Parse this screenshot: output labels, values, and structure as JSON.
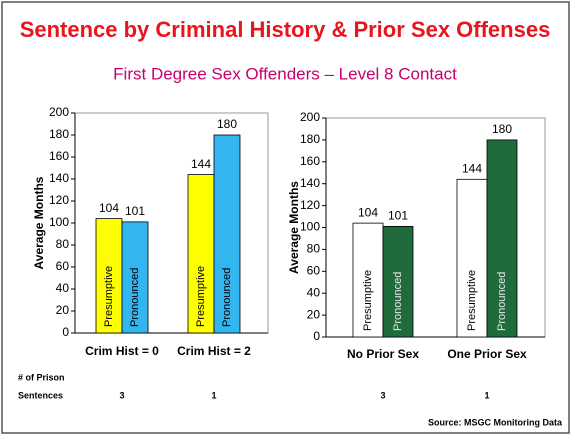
{
  "title": "Sentence by Criminal History & Prior Sex Offenses",
  "subtitle": "First Degree Sex Offenders – Level 8 Contact",
  "row_label": [
    "# of Prison",
    "Sentences"
  ],
  "source": "Source:  MSGC Monitoring Data",
  "chart_data": [
    {
      "type": "bar",
      "ylabel": "Average Months",
      "categories": [
        "Crim Hist = 0",
        "Crim Hist = 2"
      ],
      "series": [
        {
          "name": "Presumptive",
          "color": "#ffff00",
          "values": [
            104,
            144
          ]
        },
        {
          "name": "Pronounced",
          "color": "#33b5ef",
          "values": [
            101,
            180
          ]
        }
      ],
      "prison_sentences": [
        3,
        1
      ],
      "ylim": [
        0,
        200
      ],
      "yticks": [
        0,
        20,
        40,
        60,
        80,
        100,
        120,
        140,
        160,
        180,
        200
      ]
    },
    {
      "type": "bar",
      "ylabel": "Average Months",
      "categories": [
        "No Prior Sex",
        "One Prior Sex"
      ],
      "series": [
        {
          "name": "Presumptive",
          "color": "#ffffff",
          "values": [
            104,
            144
          ]
        },
        {
          "name": "Pronounced",
          "color": "#1f6b3c",
          "values": [
            101,
            180
          ]
        }
      ],
      "prison_sentences": [
        3,
        1
      ],
      "ylim": [
        0,
        200
      ],
      "yticks": [
        0,
        20,
        40,
        60,
        80,
        100,
        120,
        140,
        160,
        180,
        200
      ]
    }
  ]
}
